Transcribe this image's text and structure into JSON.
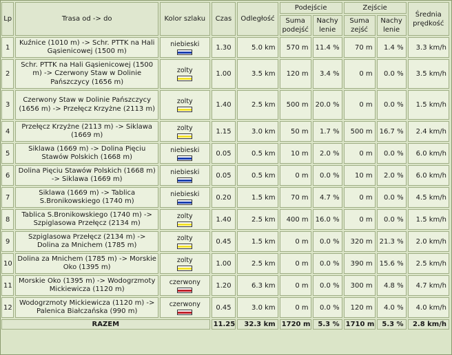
{
  "headers": {
    "lp": "Lp",
    "route": "Trasa od -> do",
    "color": "Kolor szlaku",
    "time": "Czas",
    "distance": "Odległość",
    "ascent": "Podejście",
    "descent": "Zejście",
    "speed": "Średnia prędkość",
    "sum_ascent": "Suma podejść",
    "slope_ascent": "Nachy lenie",
    "sum_descent": "Suma zejść",
    "slope_descent": "Nachy lenie"
  },
  "colors": {
    "niebieski": "#1a3fb0",
    "zolty": "#f2e12a",
    "czerwony": "#c0202a"
  },
  "rows": [
    {
      "lp": "1",
      "route": "Kuźnice (1010 m) -> Schr. PTTK na Hali Gąsienicowej (1500 m)",
      "color": "niebieski",
      "time": "1.30",
      "distance": "5.0 km",
      "up": "570 m",
      "up_slope": "11.4 %",
      "down": "70 m",
      "down_slope": "1.4 %",
      "speed": "3.3 km/h"
    },
    {
      "lp": "2",
      "route": "Schr. PTTK na Hali Gąsienicowej (1500 m) -> Czerwony Staw w Dolinie Pańszczycy (1656 m)",
      "color": "zolty",
      "time": "1.00",
      "distance": "3.5 km",
      "up": "120 m",
      "up_slope": "3.4 %",
      "down": "0 m",
      "down_slope": "0.0 %",
      "speed": "3.5 km/h"
    },
    {
      "lp": "3",
      "route": "Czerwony Staw w Dolinie Pańszczycy (1656 m) -> Przełęcz Krzyżne (2113 m)",
      "color": "zolty",
      "time": "1.40",
      "distance": "2.5 km",
      "up": "500 m",
      "up_slope": "20.0 %",
      "down": "0 m",
      "down_slope": "0.0 %",
      "speed": "1.5 km/h"
    },
    {
      "lp": "4",
      "route": "Przełęcz Krzyżne (2113 m) -> Siklawa (1669 m)",
      "color": "zolty",
      "time": "1.15",
      "distance": "3.0 km",
      "up": "50 m",
      "up_slope": "1.7 %",
      "down": "500 m",
      "down_slope": "16.7 %",
      "speed": "2.4 km/h"
    },
    {
      "lp": "5",
      "route": "Siklawa (1669 m) -> Dolina Pięciu Stawów Polskich (1668 m)",
      "color": "niebieski",
      "time": "0.05",
      "distance": "0.5 km",
      "up": "10 m",
      "up_slope": "2.0 %",
      "down": "0 m",
      "down_slope": "0.0 %",
      "speed": "6.0 km/h"
    },
    {
      "lp": "6",
      "route": "Dolina Pięciu Stawów Polskich (1668 m) -> Siklawa (1669 m)",
      "color": "niebieski",
      "time": "0.05",
      "distance": "0.5 km",
      "up": "0 m",
      "up_slope": "0.0 %",
      "down": "10 m",
      "down_slope": "2.0 %",
      "speed": "6.0 km/h"
    },
    {
      "lp": "7",
      "route": "Siklawa (1669 m) -> Tablica S.Bronikowskiego (1740 m)",
      "color": "niebieski",
      "time": "0.20",
      "distance": "1.5 km",
      "up": "70 m",
      "up_slope": "4.7 %",
      "down": "0 m",
      "down_slope": "0.0 %",
      "speed": "4.5 km/h"
    },
    {
      "lp": "8",
      "route": "Tablica S.Bronikowskiego (1740 m) -> Szpiglasowa Przełęcz (2134 m)",
      "color": "zolty",
      "time": "1.40",
      "distance": "2.5 km",
      "up": "400 m",
      "up_slope": "16.0 %",
      "down": "0 m",
      "down_slope": "0.0 %",
      "speed": "1.5 km/h"
    },
    {
      "lp": "9",
      "route": "Szpiglasowa Przełęcz (2134 m) -> Dolina za Mnichem (1785 m)",
      "color": "zolty",
      "time": "0.45",
      "distance": "1.5 km",
      "up": "0 m",
      "up_slope": "0.0 %",
      "down": "320 m",
      "down_slope": "21.3 %",
      "speed": "2.0 km/h"
    },
    {
      "lp": "10",
      "route": "Dolina za Mnichem (1785 m) -> Morskie Oko (1395 m)",
      "color": "zolty",
      "time": "1.00",
      "distance": "2.5 km",
      "up": "0 m",
      "up_slope": "0.0 %",
      "down": "390 m",
      "down_slope": "15.6 %",
      "speed": "2.5 km/h"
    },
    {
      "lp": "11",
      "route": "Morskie Oko (1395 m) -> Wodogrzmoty Mickiewicza (1120 m)",
      "color": "czerwony",
      "time": "1.20",
      "distance": "6.3 km",
      "up": "0 m",
      "up_slope": "0.0 %",
      "down": "300 m",
      "down_slope": "4.8 %",
      "speed": "4.7 km/h"
    },
    {
      "lp": "12",
      "route": "Wodogrzmoty Mickiewicza (1120 m) -> Palenica Białczańska (990 m)",
      "color": "czerwony",
      "time": "0.45",
      "distance": "3.0 km",
      "up": "0 m",
      "up_slope": "0.0 %",
      "down": "120 m",
      "down_slope": "4.0 %",
      "speed": "4.0 km/h"
    }
  ],
  "total": {
    "label": "RAZEM",
    "time": "11.25",
    "distance": "32.3 km",
    "up": "1720 m",
    "up_slope": "5.3 %",
    "down": "1710 m",
    "down_slope": "5.3 %",
    "speed": "2.8 km/h"
  }
}
